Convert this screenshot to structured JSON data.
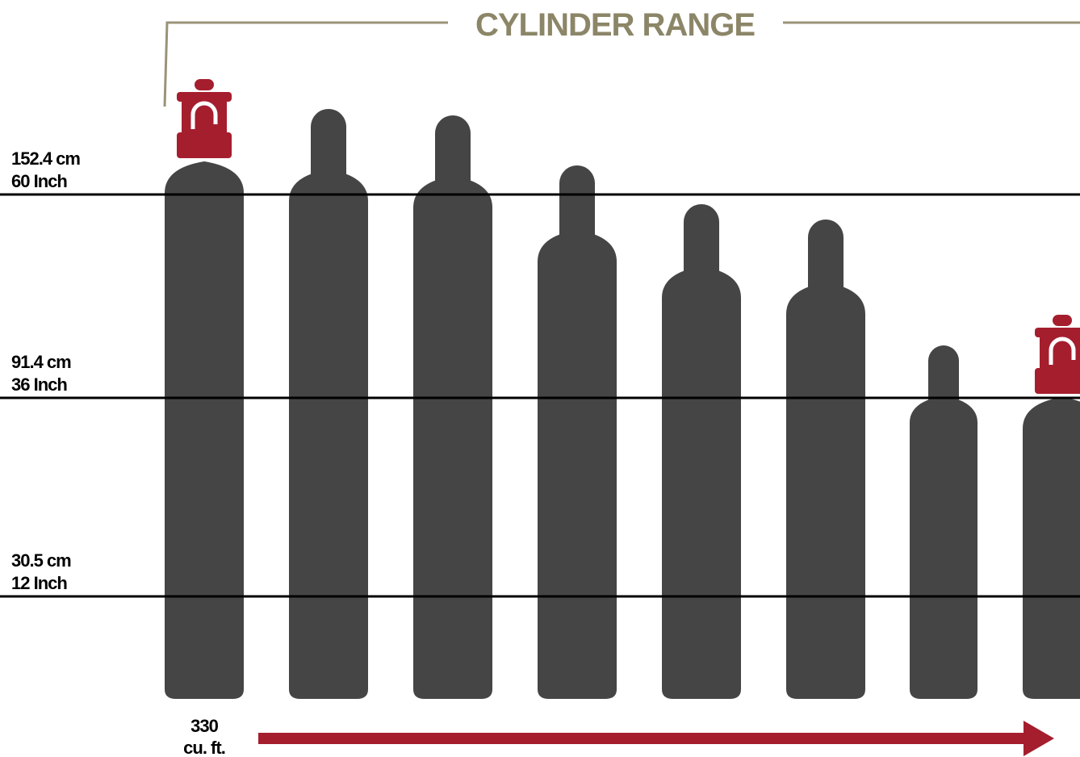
{
  "title": "CYLINDER RANGE",
  "height_lines": [
    {
      "metric": "152.4 cm",
      "imperial": "60 Inch"
    },
    {
      "metric": "91.4 cm",
      "imperial": "36 Inch"
    },
    {
      "metric": "30.5 cm",
      "imperial": "12 Inch"
    }
  ],
  "capacity": {
    "value": "330",
    "unit": "cu. ft."
  }
}
